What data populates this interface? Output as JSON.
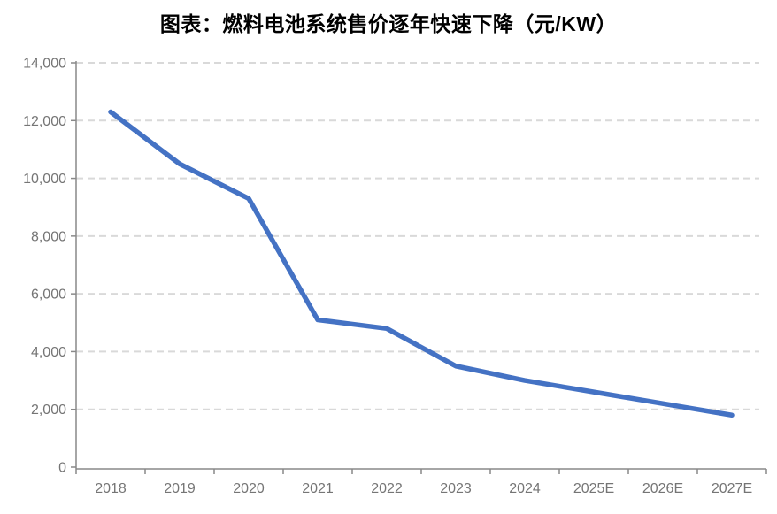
{
  "page": {
    "background_color": "#ffffff"
  },
  "chart_data": {
    "type": "line",
    "title": "图表：燃料电池系统售价逐年快速下降（元/KW）",
    "categories": [
      "2018",
      "2019",
      "2020",
      "2021",
      "2022",
      "2023",
      "2024",
      "2025E",
      "2026E",
      "2027E"
    ],
    "series": [
      {
        "name": "燃料电池系统售价(元/KW)",
        "values": [
          12300,
          10500,
          9300,
          5100,
          4800,
          3500,
          3000,
          2600,
          2200,
          1800
        ]
      }
    ],
    "xlabel": "",
    "ylabel": "",
    "ylim": [
      0,
      14000
    ],
    "ytick_step": 2000,
    "ytick_labels": [
      "0",
      "2,000",
      "4,000",
      "6,000",
      "8,000",
      "10,000",
      "12,000",
      "14,000"
    ],
    "grid": "horizontal-dashed",
    "legend_position": "none",
    "markers": "none",
    "colors": {
      "line": "#4472C4",
      "gridline": "#D9D9D9",
      "axis_line": "#898989",
      "tick_label": "#757575",
      "title": "#000000"
    }
  }
}
